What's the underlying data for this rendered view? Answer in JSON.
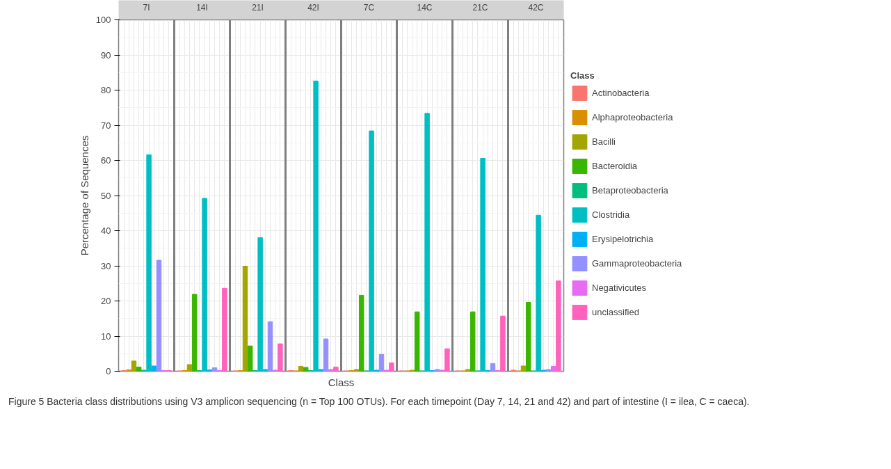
{
  "chart_data": {
    "type": "bar",
    "categories": [
      "7I",
      "14I",
      "21I",
      "42I",
      "7C",
      "14C",
      "21C",
      "42C"
    ],
    "xlabel": "Class",
    "ylabel": "Percentage of Sequences",
    "legend_title": "Class",
    "legend": "right",
    "grid": true,
    "ylim": [
      0,
      100
    ],
    "yticks": [
      0,
      10,
      20,
      30,
      40,
      50,
      60,
      70,
      80,
      90,
      100
    ],
    "annotations": [
      "Figure 5 Bacteria class distributions using V3 amplicon sequencing (n = Top 100 OTUs). For each timepoint (Day 7, 14, 21 and 42) and part of intestine (I = ilea, C = caeca)."
    ],
    "series": [
      {
        "name": "Actinobacteria",
        "color": "#f8766d",
        "values": [
          0.2,
          0.1,
          0.1,
          0.2,
          0.1,
          0.1,
          0.1,
          0.3
        ]
      },
      {
        "name": "Alphaproteobacteria",
        "color": "#d89000",
        "values": [
          0.4,
          0.2,
          0.2,
          0.1,
          0.2,
          0.1,
          0.1,
          0.1
        ]
      },
      {
        "name": "Bacilli",
        "color": "#a3a500",
        "values": [
          2.9,
          1.9,
          29.9,
          1.4,
          0.5,
          0.3,
          0.5,
          1.5
        ]
      },
      {
        "name": "Bacteroidia",
        "color": "#39b600",
        "values": [
          1.2,
          21.9,
          7.2,
          1.1,
          21.6,
          16.9,
          16.9,
          19.6
        ]
      },
      {
        "name": "Betaproteobacteria",
        "color": "#00bf7d",
        "values": [
          0.3,
          0.2,
          0.2,
          0.2,
          0.1,
          0.1,
          0.1,
          0.1
        ]
      },
      {
        "name": "Clostridia",
        "color": "#00bfc4",
        "values": [
          61.6,
          49.2,
          38.0,
          82.6,
          68.4,
          73.4,
          60.6,
          44.4
        ]
      },
      {
        "name": "Erysipelotrichia",
        "color": "#00b0f6",
        "values": [
          1.5,
          0.4,
          0.5,
          0.5,
          0.3,
          0.2,
          0.2,
          0.3
        ]
      },
      {
        "name": "Gammaproteobacteria",
        "color": "#9590ff",
        "values": [
          31.6,
          1.0,
          14.1,
          9.2,
          4.8,
          0.5,
          2.2,
          0.5
        ]
      },
      {
        "name": "Negativicutes",
        "color": "#e76bf3",
        "values": [
          0.2,
          0.2,
          0.3,
          0.5,
          0.3,
          0.3,
          0.2,
          1.4
        ]
      },
      {
        "name": "unclassified",
        "color": "#ff62bc",
        "values": [
          0.2,
          23.6,
          7.8,
          1.2,
          2.4,
          6.4,
          15.7,
          25.7
        ]
      }
    ]
  }
}
